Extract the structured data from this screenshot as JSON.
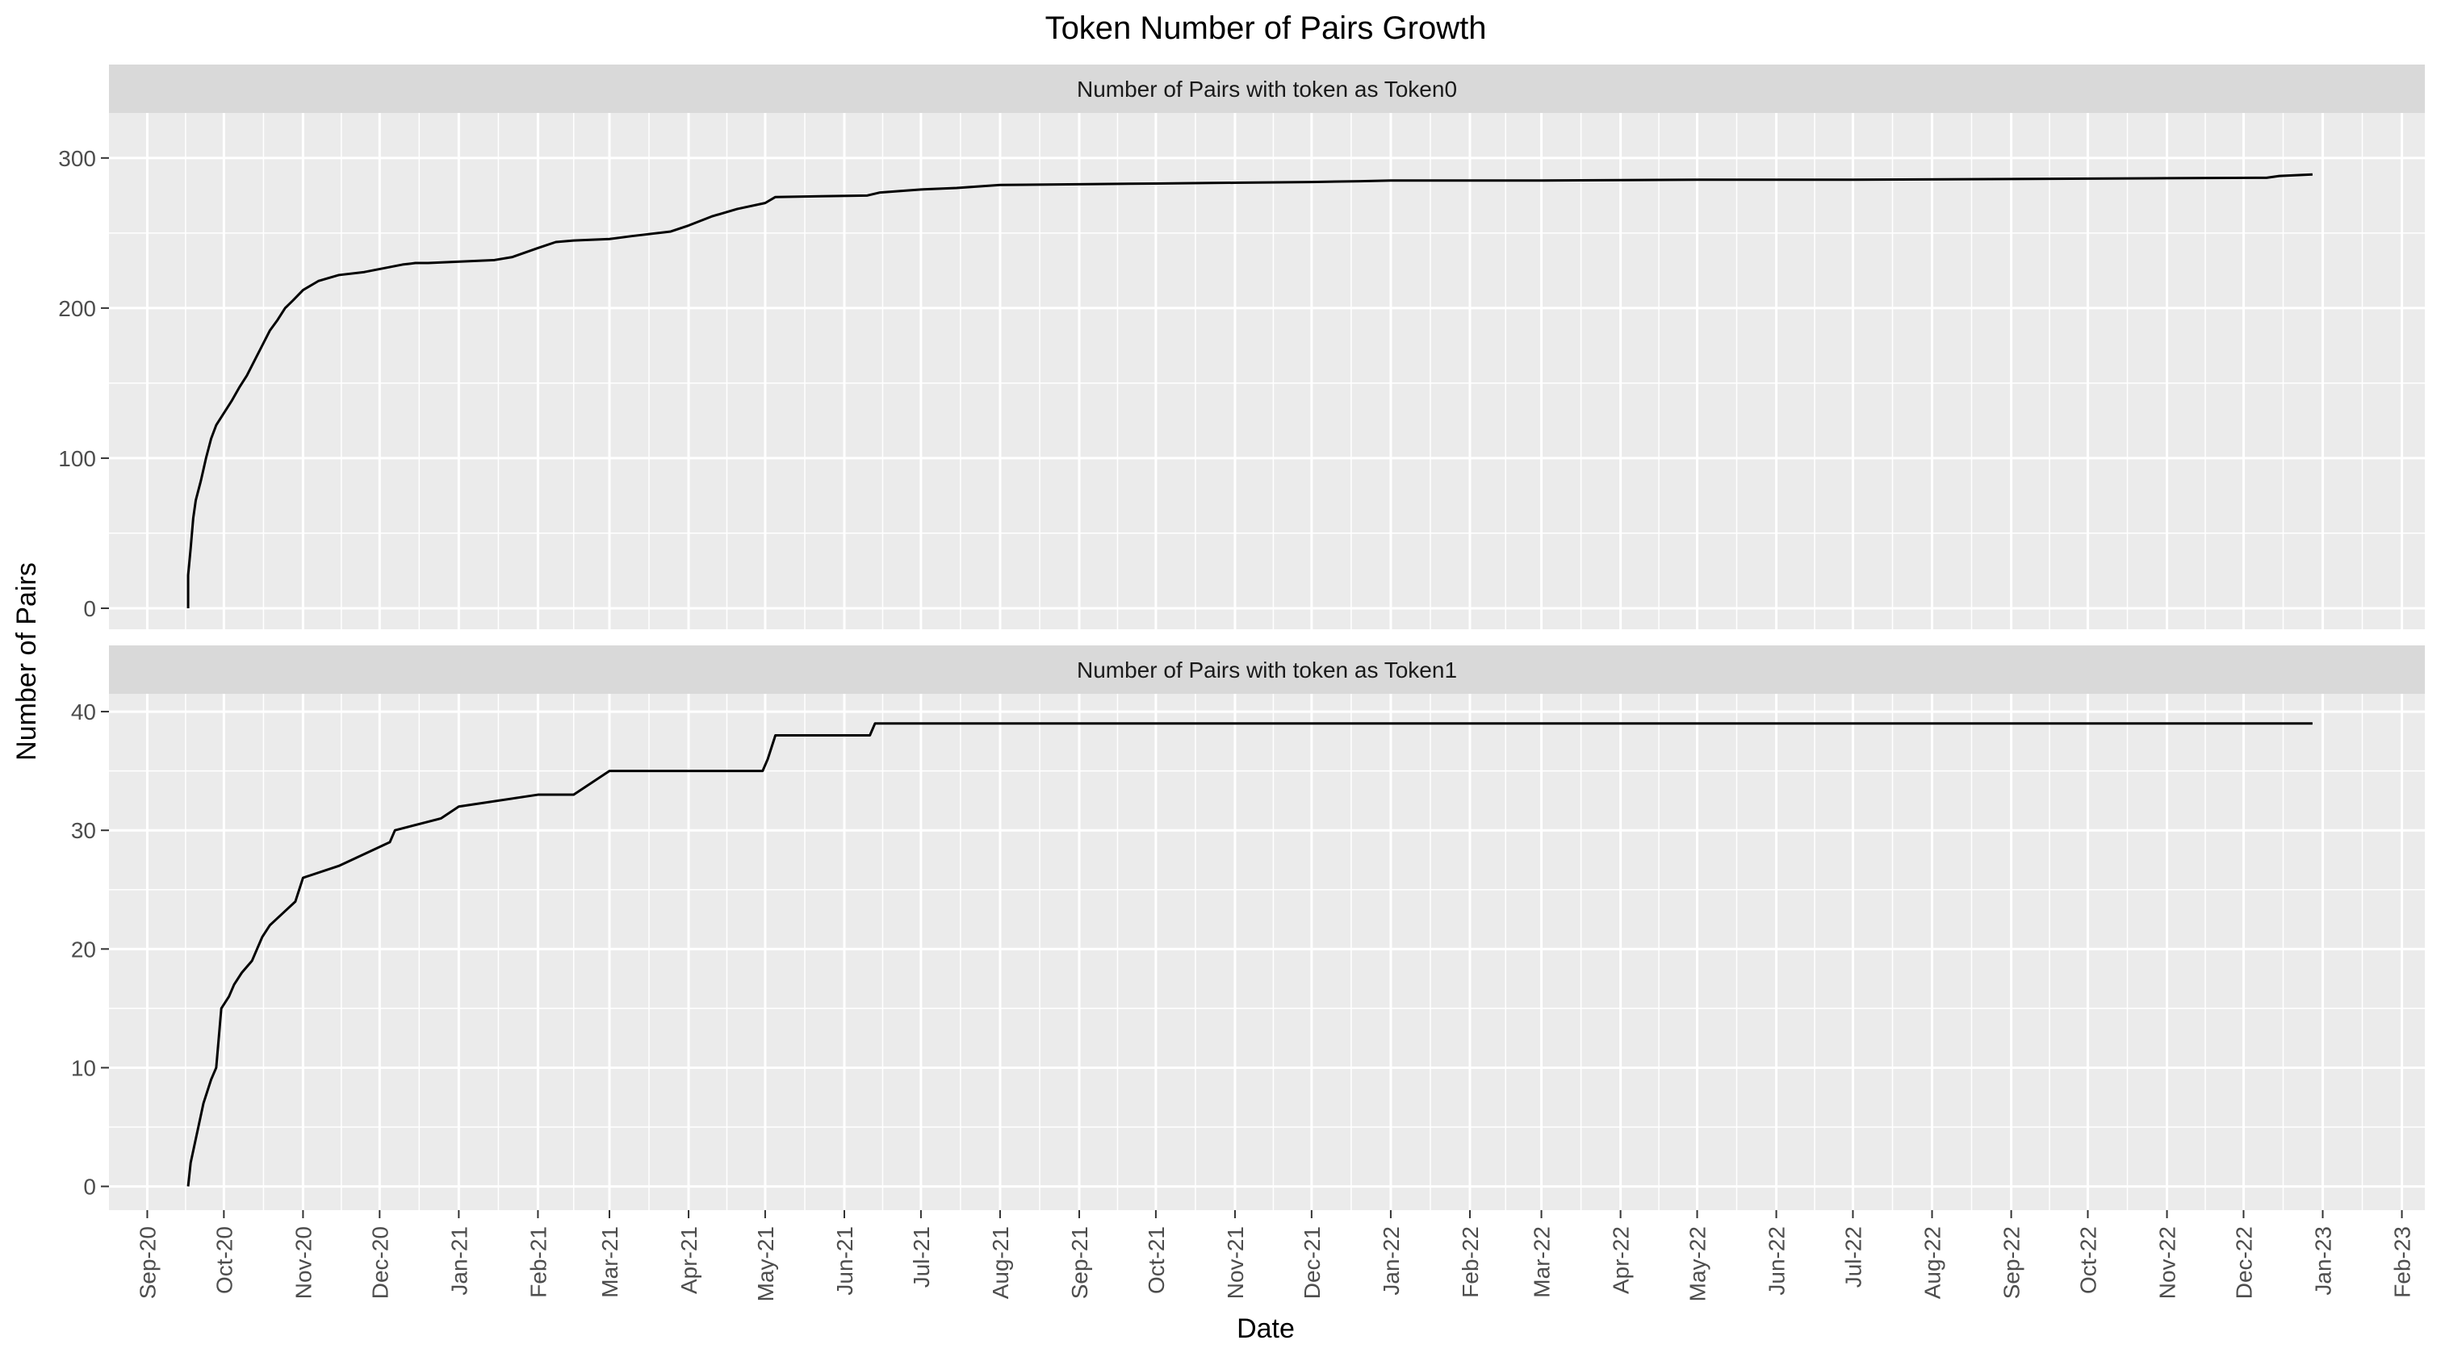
{
  "chart_data": {
    "type": "line",
    "title": "Token Number of Pairs Growth",
    "xlabel": "Date",
    "ylabel": "Number of Pairs",
    "x_ticks": [
      "Sep-20",
      "Oct-20",
      "Nov-20",
      "Dec-20",
      "Jan-21",
      "Feb-21",
      "Mar-21",
      "Apr-21",
      "May-21",
      "Jun-21",
      "Jul-21",
      "Aug-21",
      "Sep-21",
      "Oct-21",
      "Nov-21",
      "Dec-21",
      "Jan-22",
      "Feb-22",
      "Mar-22",
      "Apr-22",
      "May-22",
      "Jun-22",
      "Jul-22",
      "Aug-22",
      "Sep-22",
      "Oct-22",
      "Nov-22",
      "Dec-22",
      "Jan-23",
      "Feb-23"
    ],
    "xlim": [
      "2020-08-17",
      "2023-02-10"
    ],
    "grid": true,
    "legend": "none",
    "panels": [
      {
        "strip_label": "Number of Pairs with token as Token0",
        "ylim": [
          -14,
          330
        ],
        "y_ticks": [
          0,
          100,
          200,
          300
        ],
        "series": [
          {
            "x": [
              "2020-09-17",
              "2020-09-17",
              "2020-09-18",
              "2020-09-19",
              "2020-09-20",
              "2020-09-22",
              "2020-09-24",
              "2020-09-26",
              "2020-09-28",
              "2020-10-01",
              "2020-10-04",
              "2020-10-07",
              "2020-10-10",
              "2020-10-13",
              "2020-10-16",
              "2020-10-19",
              "2020-10-22",
              "2020-10-25",
              "2020-10-28",
              "2020-11-01",
              "2020-11-07",
              "2020-11-15",
              "2020-11-25",
              "2020-12-10",
              "2020-12-15",
              "2020-12-20",
              "2021-01-15",
              "2021-01-22",
              "2021-02-01",
              "2021-02-08",
              "2021-02-15",
              "2021-03-01",
              "2021-03-10",
              "2021-03-25",
              "2021-04-01",
              "2021-04-10",
              "2021-04-20",
              "2021-05-01",
              "2021-05-05",
              "2021-06-10",
              "2021-06-15",
              "2021-07-01",
              "2021-07-15",
              "2021-08-01",
              "2021-09-01",
              "2021-10-01",
              "2021-11-01",
              "2021-12-01",
              "2021-12-20",
              "2022-01-01",
              "2022-03-01",
              "2022-05-01",
              "2022-07-01",
              "2022-09-01",
              "2022-11-01",
              "2022-12-10",
              "2022-12-15",
              "2022-12-28"
            ],
            "y": [
              0,
              22,
              40,
              60,
              72,
              85,
              100,
              113,
              122,
              130,
              138,
              147,
              155,
              165,
              175,
              185,
              192,
              200,
              205,
              212,
              218,
              222,
              224,
              229,
              230,
              230,
              232,
              234,
              240,
              244,
              245,
              246,
              248,
              251,
              255,
              261,
              266,
              270,
              274,
              275,
              277,
              279,
              280,
              282,
              282.5,
              283,
              283.5,
              284,
              284.5,
              285,
              285,
              285.5,
              285.5,
              286,
              286.5,
              286.8,
              288,
              289
            ]
          }
        ]
      },
      {
        "strip_label": "Number of Pairs with token as Token1",
        "ylim": [
          -2,
          41.5
        ],
        "y_ticks": [
          0,
          10,
          20,
          30,
          40
        ],
        "series": [
          {
            "x": [
              "2020-09-17",
              "2020-09-18",
              "2020-09-19",
              "2020-09-20",
              "2020-09-21",
              "2020-09-23",
              "2020-09-26",
              "2020-09-28",
              "2020-09-30",
              "2020-10-03",
              "2020-10-05",
              "2020-10-08",
              "2020-10-12",
              "2020-10-14",
              "2020-10-16",
              "2020-10-19",
              "2020-10-24",
              "2020-10-29",
              "2020-11-01",
              "2020-11-15",
              "2020-12-05",
              "2020-12-07",
              "2020-12-25",
              "2021-01-01",
              "2021-02-01",
              "2021-02-15",
              "2021-03-01",
              "2021-04-30",
              "2021-05-02",
              "2021-05-05",
              "2021-06-11",
              "2021-06-13",
              "2022-12-28"
            ],
            "y": [
              0,
              2,
              3,
              4,
              5,
              7,
              9,
              10,
              15,
              16,
              17,
              18,
              19,
              20,
              21,
              22,
              23,
              24,
              26,
              27,
              29,
              30,
              31,
              32,
              33,
              33,
              35,
              35,
              36,
              38,
              38,
              39,
              39
            ]
          }
        ]
      }
    ]
  }
}
